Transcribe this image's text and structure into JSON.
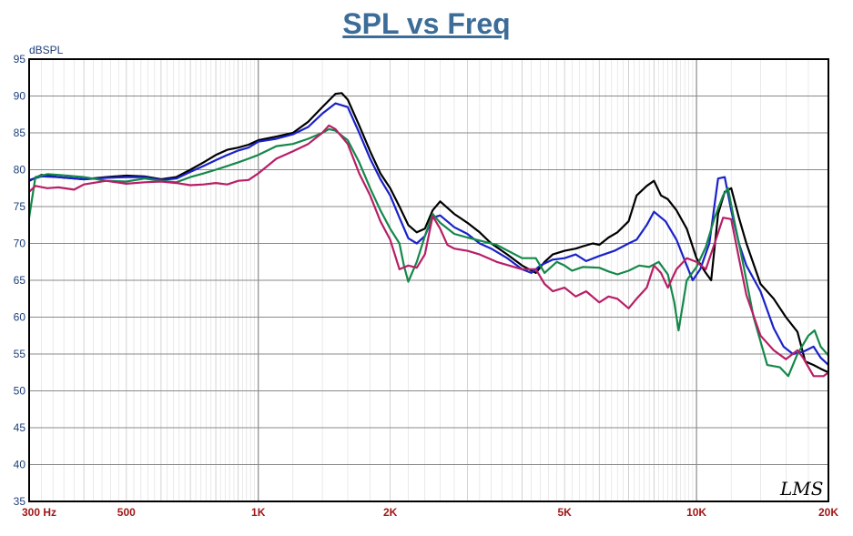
{
  "colors": {
    "title": "#3c6c98",
    "y_tick": "#1d3f7a",
    "x_tick": "#a01818",
    "grid_major": "#8a8a8a",
    "grid_minor": "#c8c8c8",
    "frame": "#000000"
  },
  "logo_text": "LMS",
  "chart_data": {
    "type": "line",
    "title": "SPL vs Freq",
    "y_unit_label": "dBSPL",
    "x_scale": "log",
    "xlim": [
      300,
      20000
    ],
    "ylim": [
      35,
      95
    ],
    "y_ticks": [
      95,
      90,
      85,
      80,
      75,
      70,
      65,
      60,
      55,
      50,
      45,
      40,
      35
    ],
    "x_tick_labels": [
      {
        "value": 300,
        "label": "300 Hz"
      },
      {
        "value": 500,
        "label": "500"
      },
      {
        "value": 1000,
        "label": "1K"
      },
      {
        "value": 2000,
        "label": "2K"
      },
      {
        "value": 5000,
        "label": "5K"
      },
      {
        "value": 10000,
        "label": "10K"
      },
      {
        "value": 20000,
        "label": "20K"
      }
    ],
    "grid": true,
    "series": [
      {
        "color": "#000000",
        "points": [
          [
            300,
            78.5
          ],
          [
            320,
            79.3
          ],
          [
            350,
            79.0
          ],
          [
            400,
            78.7
          ],
          [
            450,
            79.0
          ],
          [
            500,
            79.2
          ],
          [
            550,
            79.1
          ],
          [
            600,
            78.7
          ],
          [
            650,
            79.0
          ],
          [
            700,
            80.0
          ],
          [
            750,
            81.0
          ],
          [
            800,
            82.0
          ],
          [
            850,
            82.7
          ],
          [
            900,
            83.0
          ],
          [
            950,
            83.4
          ],
          [
            1000,
            84.0
          ],
          [
            1100,
            84.5
          ],
          [
            1200,
            85.0
          ],
          [
            1300,
            86.5
          ],
          [
            1400,
            88.5
          ],
          [
            1500,
            90.3
          ],
          [
            1550,
            90.4
          ],
          [
            1600,
            89.5
          ],
          [
            1700,
            86.0
          ],
          [
            1800,
            82.5
          ],
          [
            1900,
            79.5
          ],
          [
            2000,
            77.5
          ],
          [
            2100,
            75.0
          ],
          [
            2200,
            72.5
          ],
          [
            2300,
            71.5
          ],
          [
            2400,
            72.0
          ],
          [
            2500,
            74.5
          ],
          [
            2600,
            75.7
          ],
          [
            2800,
            74.0
          ],
          [
            3000,
            72.8
          ],
          [
            3200,
            71.5
          ],
          [
            3400,
            70.0
          ],
          [
            3700,
            68.5
          ],
          [
            4000,
            67.0
          ],
          [
            4300,
            66.0
          ],
          [
            4500,
            67.5
          ],
          [
            4700,
            68.5
          ],
          [
            5000,
            69.0
          ],
          [
            5300,
            69.3
          ],
          [
            5500,
            69.6
          ],
          [
            5800,
            70.0
          ],
          [
            6000,
            69.8
          ],
          [
            6300,
            70.8
          ],
          [
            6600,
            71.5
          ],
          [
            7000,
            73.0
          ],
          [
            7300,
            76.5
          ],
          [
            7700,
            77.8
          ],
          [
            8000,
            78.5
          ],
          [
            8300,
            76.5
          ],
          [
            8600,
            76.0
          ],
          [
            9000,
            74.5
          ],
          [
            9500,
            72.0
          ],
          [
            10000,
            68.0
          ],
          [
            10500,
            66.0
          ],
          [
            10800,
            65.0
          ],
          [
            11200,
            74.0
          ],
          [
            11600,
            77.0
          ],
          [
            12000,
            77.5
          ],
          [
            12500,
            73.5
          ],
          [
            13000,
            70.0
          ],
          [
            14000,
            64.5
          ],
          [
            15000,
            62.5
          ],
          [
            16000,
            60.0
          ],
          [
            17000,
            58.0
          ],
          [
            17700,
            54.0
          ],
          [
            18500,
            53.5
          ],
          [
            19200,
            53.0
          ],
          [
            20000,
            52.5
          ]
        ]
      },
      {
        "color": "#1a22c8",
        "points": [
          [
            300,
            78.6
          ],
          [
            320,
            79.1
          ],
          [
            350,
            79.0
          ],
          [
            400,
            78.7
          ],
          [
            450,
            78.9
          ],
          [
            500,
            79.0
          ],
          [
            550,
            79.0
          ],
          [
            600,
            78.6
          ],
          [
            650,
            78.8
          ],
          [
            700,
            79.7
          ],
          [
            750,
            80.5
          ],
          [
            800,
            81.3
          ],
          [
            850,
            82.0
          ],
          [
            900,
            82.6
          ],
          [
            950,
            83.0
          ],
          [
            1000,
            83.8
          ],
          [
            1100,
            84.2
          ],
          [
            1200,
            84.8
          ],
          [
            1300,
            85.8
          ],
          [
            1400,
            87.6
          ],
          [
            1500,
            89.0
          ],
          [
            1600,
            88.5
          ],
          [
            1700,
            85.0
          ],
          [
            1800,
            81.5
          ],
          [
            1900,
            78.7
          ],
          [
            2000,
            76.5
          ],
          [
            2100,
            73.5
          ],
          [
            2200,
            70.7
          ],
          [
            2300,
            70.0
          ],
          [
            2400,
            71.0
          ],
          [
            2500,
            73.5
          ],
          [
            2600,
            73.8
          ],
          [
            2800,
            72.2
          ],
          [
            3000,
            71.3
          ],
          [
            3200,
            70.0
          ],
          [
            3400,
            69.3
          ],
          [
            3700,
            68.0
          ],
          [
            4000,
            66.5
          ],
          [
            4200,
            66.0
          ],
          [
            4400,
            67.0
          ],
          [
            4700,
            67.8
          ],
          [
            5000,
            68.0
          ],
          [
            5300,
            68.5
          ],
          [
            5600,
            67.6
          ],
          [
            6000,
            68.3
          ],
          [
            6500,
            69.0
          ],
          [
            7000,
            70.0
          ],
          [
            7300,
            70.5
          ],
          [
            7700,
            72.5
          ],
          [
            8000,
            74.3
          ],
          [
            8500,
            73.0
          ],
          [
            9000,
            70.5
          ],
          [
            9500,
            67.0
          ],
          [
            9800,
            65.0
          ],
          [
            10200,
            66.5
          ],
          [
            10700,
            70.0
          ],
          [
            11200,
            78.8
          ],
          [
            11600,
            79.0
          ],
          [
            12000,
            74.5
          ],
          [
            12500,
            70.0
          ],
          [
            13000,
            67.0
          ],
          [
            14000,
            63.5
          ],
          [
            15000,
            58.5
          ],
          [
            15800,
            56.0
          ],
          [
            16600,
            55.0
          ],
          [
            17500,
            55.3
          ],
          [
            18500,
            56.0
          ],
          [
            19200,
            54.5
          ],
          [
            20000,
            53.5
          ]
        ]
      },
      {
        "color": "#14884a",
        "points": [
          [
            300,
            73.5
          ],
          [
            310,
            79.0
          ],
          [
            330,
            79.4
          ],
          [
            350,
            79.3
          ],
          [
            400,
            79.0
          ],
          [
            450,
            78.5
          ],
          [
            500,
            78.4
          ],
          [
            550,
            78.8
          ],
          [
            600,
            78.5
          ],
          [
            650,
            78.3
          ],
          [
            700,
            79.0
          ],
          [
            750,
            79.5
          ],
          [
            800,
            80.0
          ],
          [
            850,
            80.5
          ],
          [
            900,
            81.0
          ],
          [
            950,
            81.5
          ],
          [
            1000,
            82.0
          ],
          [
            1100,
            83.2
          ],
          [
            1200,
            83.5
          ],
          [
            1300,
            84.2
          ],
          [
            1400,
            85.0
          ],
          [
            1450,
            85.5
          ],
          [
            1500,
            85.3
          ],
          [
            1600,
            84.0
          ],
          [
            1700,
            81.0
          ],
          [
            1800,
            77.5
          ],
          [
            1900,
            74.5
          ],
          [
            2000,
            72.0
          ],
          [
            2100,
            70.0
          ],
          [
            2150,
            67.0
          ],
          [
            2200,
            64.8
          ],
          [
            2300,
            67.5
          ],
          [
            2400,
            71.0
          ],
          [
            2500,
            74.0
          ],
          [
            2600,
            72.8
          ],
          [
            2800,
            71.3
          ],
          [
            3000,
            70.8
          ],
          [
            3500,
            69.8
          ],
          [
            4000,
            68.0
          ],
          [
            4300,
            68.0
          ],
          [
            4500,
            66.0
          ],
          [
            4800,
            67.5
          ],
          [
            5000,
            67.0
          ],
          [
            5200,
            66.3
          ],
          [
            5500,
            66.8
          ],
          [
            6000,
            66.7
          ],
          [
            6300,
            66.2
          ],
          [
            6600,
            65.8
          ],
          [
            7000,
            66.3
          ],
          [
            7400,
            67.0
          ],
          [
            7800,
            66.8
          ],
          [
            8200,
            67.5
          ],
          [
            8600,
            65.8
          ],
          [
            8900,
            62.0
          ],
          [
            9100,
            58.2
          ],
          [
            9500,
            65.0
          ],
          [
            10000,
            66.8
          ],
          [
            10500,
            69.5
          ],
          [
            11000,
            73.5
          ],
          [
            11500,
            76.5
          ],
          [
            11800,
            77.5
          ],
          [
            12200,
            73.0
          ],
          [
            12800,
            67.0
          ],
          [
            13500,
            60.0
          ],
          [
            14500,
            53.5
          ],
          [
            15500,
            53.2
          ],
          [
            16200,
            52.0
          ],
          [
            17000,
            55.0
          ],
          [
            18000,
            57.5
          ],
          [
            18600,
            58.2
          ],
          [
            19200,
            56.0
          ],
          [
            20000,
            54.8
          ]
        ]
      },
      {
        "color": "#b81e66",
        "points": [
          [
            300,
            77.0
          ],
          [
            310,
            77.8
          ],
          [
            330,
            77.5
          ],
          [
            350,
            77.6
          ],
          [
            380,
            77.3
          ],
          [
            400,
            78.0
          ],
          [
            450,
            78.5
          ],
          [
            500,
            78.1
          ],
          [
            550,
            78.3
          ],
          [
            600,
            78.4
          ],
          [
            650,
            78.2
          ],
          [
            700,
            77.9
          ],
          [
            750,
            78.0
          ],
          [
            800,
            78.2
          ],
          [
            850,
            78.0
          ],
          [
            900,
            78.5
          ],
          [
            950,
            78.6
          ],
          [
            1000,
            79.5
          ],
          [
            1100,
            81.5
          ],
          [
            1200,
            82.5
          ],
          [
            1300,
            83.5
          ],
          [
            1400,
            85.0
          ],
          [
            1450,
            86.0
          ],
          [
            1500,
            85.5
          ],
          [
            1600,
            83.5
          ],
          [
            1700,
            79.5
          ],
          [
            1800,
            76.5
          ],
          [
            1900,
            73.0
          ],
          [
            2000,
            70.5
          ],
          [
            2100,
            66.5
          ],
          [
            2200,
            67.0
          ],
          [
            2300,
            66.7
          ],
          [
            2400,
            68.5
          ],
          [
            2500,
            73.7
          ],
          [
            2600,
            72.0
          ],
          [
            2700,
            69.8
          ],
          [
            2800,
            69.3
          ],
          [
            3000,
            69.0
          ],
          [
            3200,
            68.5
          ],
          [
            3500,
            67.5
          ],
          [
            4000,
            66.5
          ],
          [
            4300,
            66.5
          ],
          [
            4500,
            64.5
          ],
          [
            4700,
            63.5
          ],
          [
            5000,
            64.0
          ],
          [
            5300,
            62.8
          ],
          [
            5600,
            63.5
          ],
          [
            6000,
            62.0
          ],
          [
            6300,
            62.8
          ],
          [
            6600,
            62.5
          ],
          [
            7000,
            61.2
          ],
          [
            7300,
            62.5
          ],
          [
            7700,
            64.0
          ],
          [
            8000,
            67.0
          ],
          [
            8300,
            66.0
          ],
          [
            8600,
            64.0
          ],
          [
            9000,
            66.5
          ],
          [
            9500,
            68.0
          ],
          [
            10000,
            67.5
          ],
          [
            10500,
            66.5
          ],
          [
            11000,
            70.0
          ],
          [
            11500,
            73.5
          ],
          [
            12000,
            73.3
          ],
          [
            12500,
            68.0
          ],
          [
            13000,
            63.0
          ],
          [
            14000,
            57.5
          ],
          [
            15000,
            55.5
          ],
          [
            16000,
            54.3
          ],
          [
            17000,
            55.5
          ],
          [
            17500,
            54.5
          ],
          [
            18500,
            52.0
          ],
          [
            19500,
            52.0
          ],
          [
            20000,
            52.5
          ]
        ]
      }
    ]
  }
}
